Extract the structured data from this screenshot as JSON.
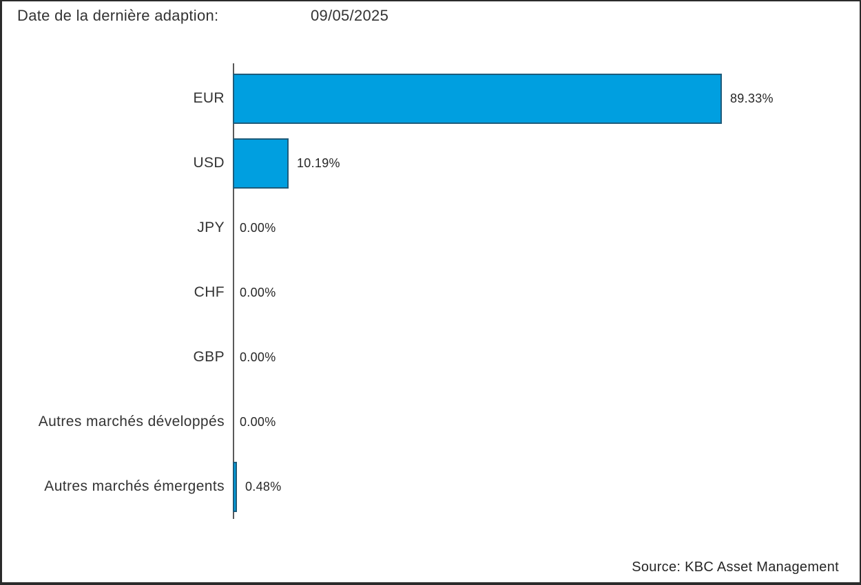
{
  "header": {
    "label": "Date de la dernière adaption:",
    "date": "09/05/2025"
  },
  "footer": {
    "source": "Source: KBC Asset Management"
  },
  "chart_data": {
    "type": "bar",
    "orientation": "horizontal",
    "title": "",
    "xlabel": "",
    "ylabel": "",
    "xlim": [
      0,
      100
    ],
    "grid": false,
    "legend": false,
    "categories": [
      "EUR",
      "USD",
      "JPY",
      "CHF",
      "GBP",
      "Autres marchés développés",
      "Autres marchés émergents"
    ],
    "values": [
      89.33,
      10.19,
      0.0,
      0.0,
      0.0,
      0.0,
      0.48
    ],
    "value_labels": [
      "89.33%",
      "10.19%",
      "0.00%",
      "0.00%",
      "0.00%",
      "0.00%",
      "0.48%"
    ],
    "colors": {
      "bar_fill": "#009FE0",
      "bar_border": "#1E5B7A",
      "axis_line": "#595959",
      "text": "#333333"
    }
  }
}
